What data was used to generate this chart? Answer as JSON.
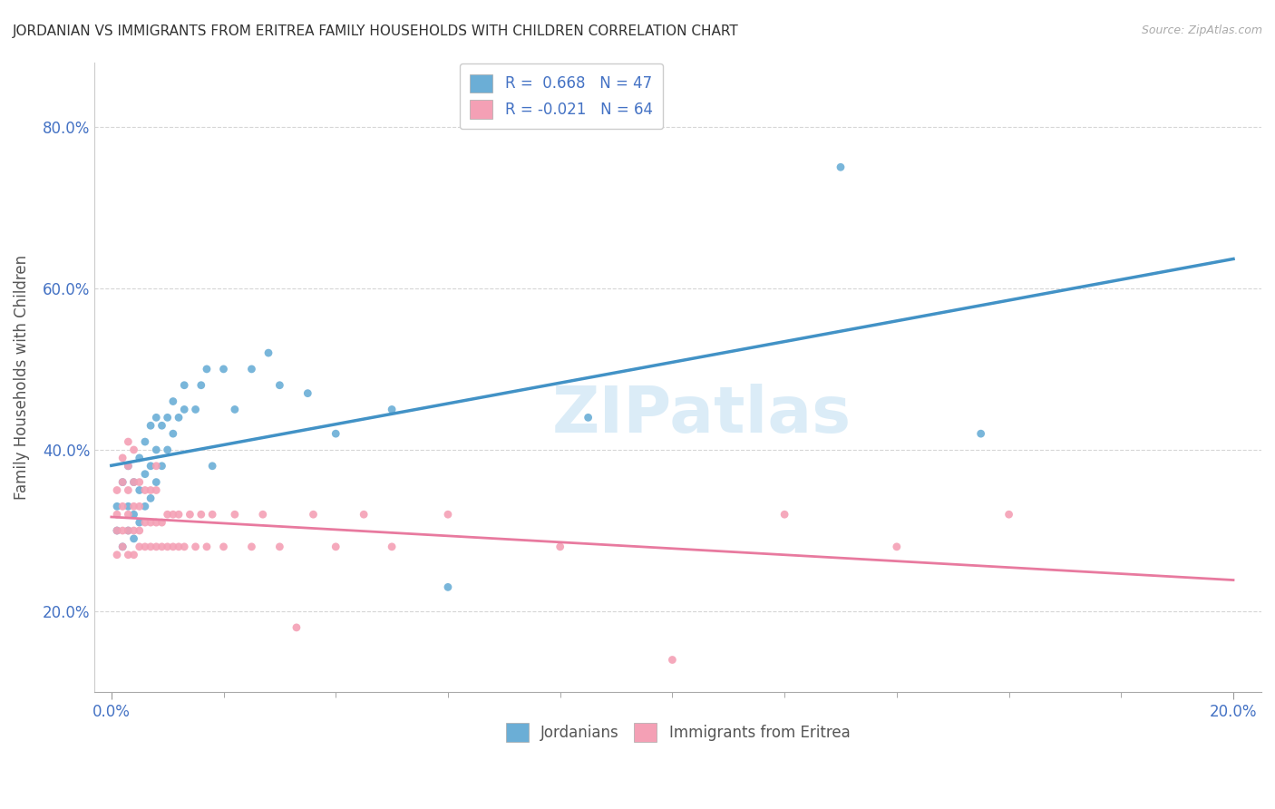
{
  "title": "JORDANIAN VS IMMIGRANTS FROM ERITREA FAMILY HOUSEHOLDS WITH CHILDREN CORRELATION CHART",
  "source": "Source: ZipAtlas.com",
  "ylabel": "Family Households with Children",
  "blue_color": "#6baed6",
  "pink_color": "#f4a0b5",
  "blue_line_color": "#4292c6",
  "pink_line_color": "#e87a9f",
  "watermark": "ZIPatlas",
  "jordanians_x": [
    0.001,
    0.001,
    0.002,
    0.002,
    0.003,
    0.003,
    0.003,
    0.004,
    0.004,
    0.004,
    0.005,
    0.005,
    0.005,
    0.006,
    0.006,
    0.006,
    0.007,
    0.007,
    0.007,
    0.008,
    0.008,
    0.008,
    0.009,
    0.009,
    0.01,
    0.01,
    0.011,
    0.011,
    0.012,
    0.013,
    0.013,
    0.015,
    0.016,
    0.017,
    0.018,
    0.02,
    0.022,
    0.025,
    0.028,
    0.03,
    0.035,
    0.04,
    0.05,
    0.06,
    0.085,
    0.13,
    0.155
  ],
  "jordanians_y": [
    0.3,
    0.33,
    0.28,
    0.36,
    0.3,
    0.33,
    0.38,
    0.29,
    0.32,
    0.36,
    0.31,
    0.35,
    0.39,
    0.33,
    0.37,
    0.41,
    0.34,
    0.38,
    0.43,
    0.36,
    0.4,
    0.44,
    0.38,
    0.43,
    0.4,
    0.44,
    0.42,
    0.46,
    0.44,
    0.45,
    0.48,
    0.45,
    0.48,
    0.5,
    0.38,
    0.5,
    0.45,
    0.5,
    0.52,
    0.48,
    0.47,
    0.42,
    0.45,
    0.23,
    0.44,
    0.75,
    0.42
  ],
  "eritrea_x": [
    0.001,
    0.001,
    0.001,
    0.001,
    0.002,
    0.002,
    0.002,
    0.002,
    0.002,
    0.003,
    0.003,
    0.003,
    0.003,
    0.003,
    0.003,
    0.004,
    0.004,
    0.004,
    0.004,
    0.004,
    0.005,
    0.005,
    0.005,
    0.005,
    0.006,
    0.006,
    0.006,
    0.007,
    0.007,
    0.007,
    0.008,
    0.008,
    0.008,
    0.008,
    0.009,
    0.009,
    0.01,
    0.01,
    0.011,
    0.011,
    0.012,
    0.012,
    0.013,
    0.014,
    0.015,
    0.016,
    0.017,
    0.018,
    0.02,
    0.022,
    0.025,
    0.027,
    0.03,
    0.033,
    0.036,
    0.04,
    0.045,
    0.05,
    0.06,
    0.08,
    0.1,
    0.12,
    0.14,
    0.16
  ],
  "eritrea_y": [
    0.27,
    0.3,
    0.32,
    0.35,
    0.28,
    0.3,
    0.33,
    0.36,
    0.39,
    0.27,
    0.3,
    0.32,
    0.35,
    0.38,
    0.41,
    0.27,
    0.3,
    0.33,
    0.36,
    0.4,
    0.28,
    0.3,
    0.33,
    0.36,
    0.28,
    0.31,
    0.35,
    0.28,
    0.31,
    0.35,
    0.28,
    0.31,
    0.35,
    0.38,
    0.28,
    0.31,
    0.28,
    0.32,
    0.28,
    0.32,
    0.28,
    0.32,
    0.28,
    0.32,
    0.28,
    0.32,
    0.28,
    0.32,
    0.28,
    0.32,
    0.28,
    0.32,
    0.28,
    0.18,
    0.32,
    0.28,
    0.32,
    0.28,
    0.32,
    0.28,
    0.14,
    0.32,
    0.28,
    0.32
  ],
  "y_tick_vals": [
    0.2,
    0.4,
    0.6,
    0.8
  ],
  "y_tick_labels": [
    "20.0%",
    "40.0%",
    "60.0%",
    "80.0%"
  ]
}
